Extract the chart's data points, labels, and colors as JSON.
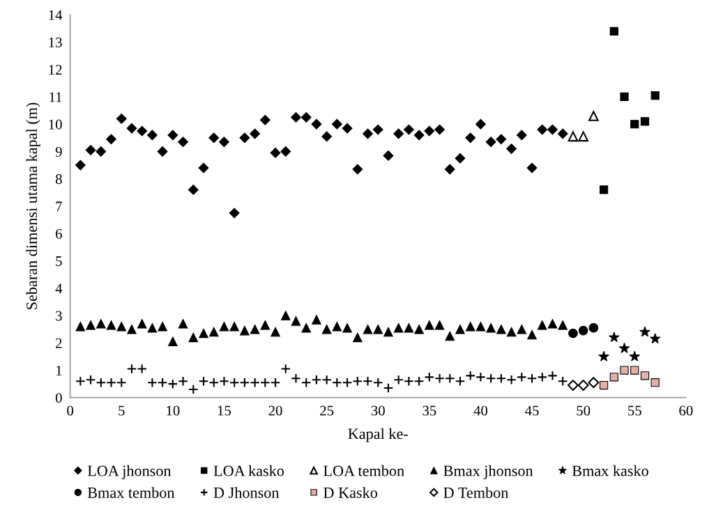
{
  "chart_data": {
    "type": "scatter",
    "xlabel": "Kapal ke-",
    "ylabel": "Sebaran dimensi utama kapal (m)",
    "xlim": [
      0,
      60
    ],
    "xticks": [
      0,
      5,
      10,
      15,
      20,
      25,
      30,
      35,
      40,
      45,
      50,
      55,
      60
    ],
    "ylim": [
      0,
      14
    ],
    "yticks": [
      0,
      1,
      2,
      3,
      4,
      5,
      6,
      7,
      8,
      9,
      10,
      11,
      12,
      13,
      14
    ],
    "grid": false,
    "legend": "bottom",
    "series": [
      {
        "name": "LOA jhonson",
        "color": "#000000",
        "marker": "diamond",
        "x": [
          1,
          2,
          3,
          4,
          5,
          6,
          7,
          8,
          9,
          10,
          11,
          12,
          13,
          14,
          15,
          16,
          17,
          18,
          19,
          20,
          21,
          22,
          23,
          24,
          25,
          26,
          27,
          28,
          29,
          30,
          31,
          32,
          33,
          34,
          35,
          36,
          37,
          38,
          39,
          40,
          41,
          42,
          43,
          44,
          45,
          46,
          47,
          48
        ],
        "values": [
          8.5,
          9.05,
          9.0,
          9.45,
          10.2,
          9.85,
          9.75,
          9.6,
          9.0,
          9.6,
          9.35,
          7.6,
          8.4,
          9.5,
          9.35,
          6.75,
          9.5,
          9.65,
          10.15,
          8.95,
          9.0,
          10.25,
          10.25,
          10.0,
          9.55,
          10.0,
          9.85,
          8.35,
          9.65,
          9.8,
          8.85,
          9.65,
          9.8,
          9.6,
          9.75,
          9.8,
          8.35,
          8.75,
          9.5,
          10.0,
          9.35,
          9.45,
          9.1,
          9.6,
          8.4,
          9.8,
          9.8,
          9.65
        ]
      },
      {
        "name": "LOA kasko",
        "color": "#000000",
        "marker": "square",
        "x": [
          52,
          53,
          54,
          55,
          56,
          57
        ],
        "values": [
          7.6,
          13.4,
          11.0,
          10.0,
          10.1,
          11.05
        ]
      },
      {
        "name": "LOA tembon",
        "color": "#ffffff",
        "marker": "triangle",
        "x": [
          49,
          50,
          51
        ],
        "values": [
          9.55,
          9.55,
          10.3
        ]
      },
      {
        "name": "Bmax jhonson",
        "color": "#000000",
        "marker": "triangle",
        "x": [
          1,
          2,
          3,
          4,
          5,
          6,
          7,
          8,
          9,
          10,
          11,
          12,
          13,
          14,
          15,
          16,
          17,
          18,
          19,
          20,
          21,
          22,
          23,
          24,
          25,
          26,
          27,
          28,
          29,
          30,
          31,
          32,
          33,
          34,
          35,
          36,
          37,
          38,
          39,
          40,
          41,
          42,
          43,
          44,
          45,
          46,
          47,
          48
        ],
        "values": [
          2.6,
          2.65,
          2.7,
          2.65,
          2.6,
          2.5,
          2.7,
          2.55,
          2.6,
          2.05,
          2.7,
          2.2,
          2.35,
          2.4,
          2.6,
          2.6,
          2.45,
          2.5,
          2.65,
          2.4,
          3.0,
          2.8,
          2.55,
          2.85,
          2.5,
          2.6,
          2.55,
          2.2,
          2.5,
          2.5,
          2.4,
          2.55,
          2.55,
          2.5,
          2.65,
          2.65,
          2.25,
          2.5,
          2.6,
          2.6,
          2.55,
          2.5,
          2.4,
          2.5,
          2.3,
          2.65,
          2.7,
          2.65
        ]
      },
      {
        "name": "Bmax kasko",
        "color": "#000000",
        "marker": "star",
        "x": [
          52,
          53,
          54,
          55,
          56,
          57
        ],
        "values": [
          1.5,
          2.2,
          1.8,
          1.5,
          2.4,
          2.15
        ]
      },
      {
        "name": "Bmax tembon",
        "color": "#000000",
        "marker": "circle",
        "x": [
          49,
          50,
          51
        ],
        "values": [
          2.35,
          2.45,
          2.55
        ]
      },
      {
        "name": "D Jhonson",
        "color": "#000000",
        "marker": "cross",
        "x": [
          1,
          2,
          3,
          4,
          5,
          6,
          7,
          8,
          9,
          10,
          11,
          12,
          13,
          14,
          15,
          16,
          17,
          18,
          19,
          20,
          21,
          22,
          23,
          24,
          25,
          26,
          27,
          28,
          29,
          30,
          31,
          32,
          33,
          34,
          35,
          36,
          37,
          38,
          39,
          40,
          41,
          42,
          43,
          44,
          45,
          46,
          47,
          48
        ],
        "values": [
          0.6,
          0.65,
          0.55,
          0.55,
          0.55,
          1.05,
          1.05,
          0.55,
          0.55,
          0.5,
          0.6,
          0.3,
          0.6,
          0.55,
          0.6,
          0.55,
          0.55,
          0.55,
          0.55,
          0.55,
          1.05,
          0.7,
          0.55,
          0.65,
          0.65,
          0.55,
          0.55,
          0.6,
          0.6,
          0.55,
          0.35,
          0.65,
          0.6,
          0.6,
          0.75,
          0.7,
          0.7,
          0.6,
          0.8,
          0.75,
          0.7,
          0.7,
          0.65,
          0.75,
          0.7,
          0.75,
          0.8,
          0.6
        ]
      },
      {
        "name": "D Kasko",
        "color": "#e6b0aa",
        "marker": "square",
        "x": [
          52,
          53,
          54,
          55,
          56,
          57
        ],
        "values": [
          0.45,
          0.75,
          1.0,
          1.0,
          0.8,
          0.55
        ]
      },
      {
        "name": "D Tembon",
        "color": "#ffffff",
        "marker": "diamond",
        "x": [
          49,
          50,
          51
        ],
        "values": [
          0.45,
          0.45,
          0.55
        ]
      }
    ]
  }
}
